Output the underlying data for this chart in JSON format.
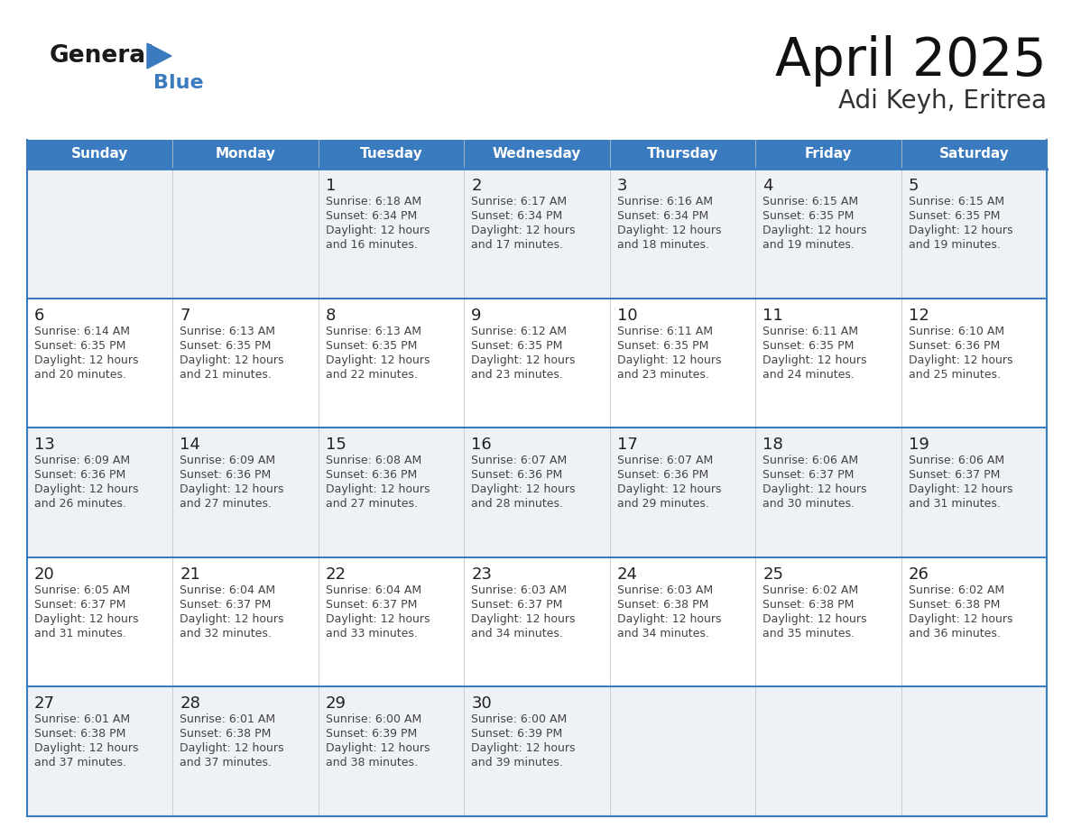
{
  "title": "April 2025",
  "subtitle": "Adi Keyh, Eritrea",
  "days_of_week": [
    "Sunday",
    "Monday",
    "Tuesday",
    "Wednesday",
    "Thursday",
    "Friday",
    "Saturday"
  ],
  "header_bg": "#3a7abf",
  "header_text": "#ffffff",
  "bg_color": "#ffffff",
  "cell_bg_odd": "#eef1f5",
  "cell_bg_even": "#ffffff",
  "border_color": "#3a7abf",
  "day_num_color": "#222222",
  "cell_text_color": "#444444",
  "sep_line_color": "#3a7abf",
  "inner_line_color": "#cccccc",
  "calendar_data": [
    [
      null,
      null,
      {
        "day": "1",
        "sunrise": "6:18 AM",
        "sunset": "6:34 PM",
        "daylight_line1": "Daylight: 12 hours",
        "daylight_line2": "and 16 minutes."
      },
      {
        "day": "2",
        "sunrise": "6:17 AM",
        "sunset": "6:34 PM",
        "daylight_line1": "Daylight: 12 hours",
        "daylight_line2": "and 17 minutes."
      },
      {
        "day": "3",
        "sunrise": "6:16 AM",
        "sunset": "6:34 PM",
        "daylight_line1": "Daylight: 12 hours",
        "daylight_line2": "and 18 minutes."
      },
      {
        "day": "4",
        "sunrise": "6:15 AM",
        "sunset": "6:35 PM",
        "daylight_line1": "Daylight: 12 hours",
        "daylight_line2": "and 19 minutes."
      },
      {
        "day": "5",
        "sunrise": "6:15 AM",
        "sunset": "6:35 PM",
        "daylight_line1": "Daylight: 12 hours",
        "daylight_line2": "and 19 minutes."
      }
    ],
    [
      {
        "day": "6",
        "sunrise": "6:14 AM",
        "sunset": "6:35 PM",
        "daylight_line1": "Daylight: 12 hours",
        "daylight_line2": "and 20 minutes."
      },
      {
        "day": "7",
        "sunrise": "6:13 AM",
        "sunset": "6:35 PM",
        "daylight_line1": "Daylight: 12 hours",
        "daylight_line2": "and 21 minutes."
      },
      {
        "day": "8",
        "sunrise": "6:13 AM",
        "sunset": "6:35 PM",
        "daylight_line1": "Daylight: 12 hours",
        "daylight_line2": "and 22 minutes."
      },
      {
        "day": "9",
        "sunrise": "6:12 AM",
        "sunset": "6:35 PM",
        "daylight_line1": "Daylight: 12 hours",
        "daylight_line2": "and 23 minutes."
      },
      {
        "day": "10",
        "sunrise": "6:11 AM",
        "sunset": "6:35 PM",
        "daylight_line1": "Daylight: 12 hours",
        "daylight_line2": "and 23 minutes."
      },
      {
        "day": "11",
        "sunrise": "6:11 AM",
        "sunset": "6:35 PM",
        "daylight_line1": "Daylight: 12 hours",
        "daylight_line2": "and 24 minutes."
      },
      {
        "day": "12",
        "sunrise": "6:10 AM",
        "sunset": "6:36 PM",
        "daylight_line1": "Daylight: 12 hours",
        "daylight_line2": "and 25 minutes."
      }
    ],
    [
      {
        "day": "13",
        "sunrise": "6:09 AM",
        "sunset": "6:36 PM",
        "daylight_line1": "Daylight: 12 hours",
        "daylight_line2": "and 26 minutes."
      },
      {
        "day": "14",
        "sunrise": "6:09 AM",
        "sunset": "6:36 PM",
        "daylight_line1": "Daylight: 12 hours",
        "daylight_line2": "and 27 minutes."
      },
      {
        "day": "15",
        "sunrise": "6:08 AM",
        "sunset": "6:36 PM",
        "daylight_line1": "Daylight: 12 hours",
        "daylight_line2": "and 27 minutes."
      },
      {
        "day": "16",
        "sunrise": "6:07 AM",
        "sunset": "6:36 PM",
        "daylight_line1": "Daylight: 12 hours",
        "daylight_line2": "and 28 minutes."
      },
      {
        "day": "17",
        "sunrise": "6:07 AM",
        "sunset": "6:36 PM",
        "daylight_line1": "Daylight: 12 hours",
        "daylight_line2": "and 29 minutes."
      },
      {
        "day": "18",
        "sunrise": "6:06 AM",
        "sunset": "6:37 PM",
        "daylight_line1": "Daylight: 12 hours",
        "daylight_line2": "and 30 minutes."
      },
      {
        "day": "19",
        "sunrise": "6:06 AM",
        "sunset": "6:37 PM",
        "daylight_line1": "Daylight: 12 hours",
        "daylight_line2": "and 31 minutes."
      }
    ],
    [
      {
        "day": "20",
        "sunrise": "6:05 AM",
        "sunset": "6:37 PM",
        "daylight_line1": "Daylight: 12 hours",
        "daylight_line2": "and 31 minutes."
      },
      {
        "day": "21",
        "sunrise": "6:04 AM",
        "sunset": "6:37 PM",
        "daylight_line1": "Daylight: 12 hours",
        "daylight_line2": "and 32 minutes."
      },
      {
        "day": "22",
        "sunrise": "6:04 AM",
        "sunset": "6:37 PM",
        "daylight_line1": "Daylight: 12 hours",
        "daylight_line2": "and 33 minutes."
      },
      {
        "day": "23",
        "sunrise": "6:03 AM",
        "sunset": "6:37 PM",
        "daylight_line1": "Daylight: 12 hours",
        "daylight_line2": "and 34 minutes."
      },
      {
        "day": "24",
        "sunrise": "6:03 AM",
        "sunset": "6:38 PM",
        "daylight_line1": "Daylight: 12 hours",
        "daylight_line2": "and 34 minutes."
      },
      {
        "day": "25",
        "sunrise": "6:02 AM",
        "sunset": "6:38 PM",
        "daylight_line1": "Daylight: 12 hours",
        "daylight_line2": "and 35 minutes."
      },
      {
        "day": "26",
        "sunrise": "6:02 AM",
        "sunset": "6:38 PM",
        "daylight_line1": "Daylight: 12 hours",
        "daylight_line2": "and 36 minutes."
      }
    ],
    [
      {
        "day": "27",
        "sunrise": "6:01 AM",
        "sunset": "6:38 PM",
        "daylight_line1": "Daylight: 12 hours",
        "daylight_line2": "and 37 minutes."
      },
      {
        "day": "28",
        "sunrise": "6:01 AM",
        "sunset": "6:38 PM",
        "daylight_line1": "Daylight: 12 hours",
        "daylight_line2": "and 37 minutes."
      },
      {
        "day": "29",
        "sunrise": "6:00 AM",
        "sunset": "6:39 PM",
        "daylight_line1": "Daylight: 12 hours",
        "daylight_line2": "and 38 minutes."
      },
      {
        "day": "30",
        "sunrise": "6:00 AM",
        "sunset": "6:39 PM",
        "daylight_line1": "Daylight: 12 hours",
        "daylight_line2": "and 39 minutes."
      },
      null,
      null,
      null
    ]
  ]
}
